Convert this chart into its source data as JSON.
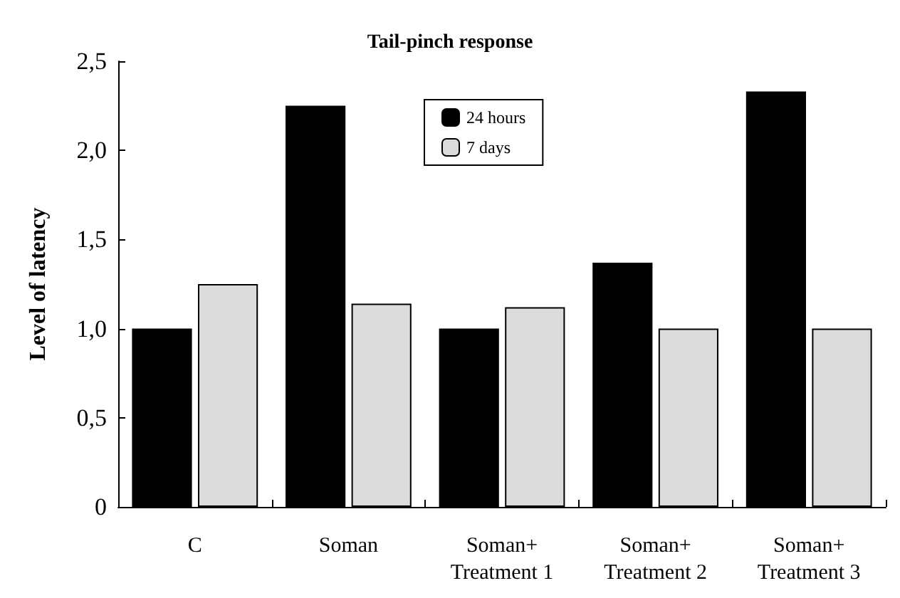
{
  "chart_data": {
    "type": "bar",
    "title": "Tail-pinch response",
    "ylabel": "Level of latency",
    "categories": [
      "C",
      "Soman",
      "Soman+\nTreatment 1",
      "Soman+\nTreatment 2",
      "Soman+\nTreatment 3"
    ],
    "series": [
      {
        "name": "24 hours",
        "color": "#000000",
        "values": [
          1.0,
          2.25,
          1.0,
          1.37,
          2.33
        ]
      },
      {
        "name": "7 days",
        "color": "#dcdcdc",
        "values": [
          1.25,
          1.14,
          1.12,
          1.0,
          1.0
        ]
      }
    ],
    "ylim": [
      0,
      2.5
    ],
    "yticks": [
      {
        "value": 0,
        "label": "0"
      },
      {
        "value": 0.5,
        "label": "0,5"
      },
      {
        "value": 1,
        "label": "1,0"
      },
      {
        "value": 1.5,
        "label": "1,5"
      },
      {
        "value": 2,
        "label": "2,0"
      },
      {
        "value": 2.5,
        "label": "2,5"
      }
    ],
    "grid": false,
    "legend": "top"
  }
}
